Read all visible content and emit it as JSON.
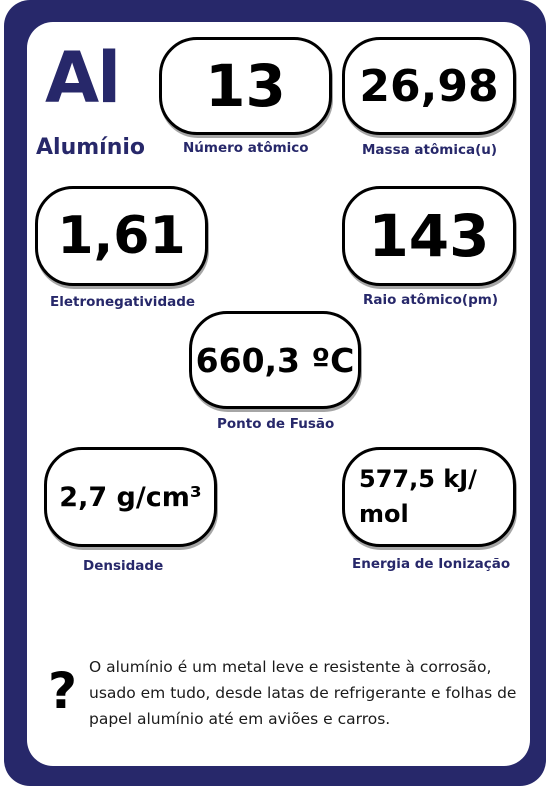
{
  "element": {
    "symbol": "Al",
    "name": "Alumínio"
  },
  "properties": {
    "atomic_number": {
      "value": "13",
      "label": "Número atômico"
    },
    "atomic_mass": {
      "value": "26,98",
      "label": "Massa atômica(u)"
    },
    "electronegativity": {
      "value": "1,61",
      "label": "Eletronegatividade"
    },
    "atomic_radius": {
      "value": "143",
      "label": "Raio atômico(pm)"
    },
    "melting_point": {
      "value": "660,3 ºC",
      "label": "Ponto de Fusão"
    },
    "density": {
      "value": "2,7 g/cm³",
      "label": "Densidade"
    },
    "ionization_energy": {
      "value_line1": "577,5 kJ/",
      "value_line2": "mol",
      "label": "Energia de Ionização"
    }
  },
  "fact": {
    "icon": "question-mark-icon",
    "glyph": "?",
    "text": "O alumínio é um metal leve e resistente à corrosão, usado em tudo, desde latas de refrigerante e folhas de papel alumínio até em aviões e carros."
  },
  "colors": {
    "frame": "#27286a",
    "text_accent": "#27286a"
  }
}
